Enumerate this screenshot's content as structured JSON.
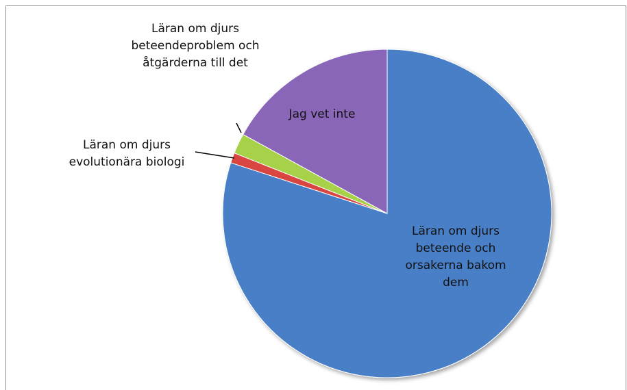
{
  "chart_data": {
    "type": "pie",
    "categories": [
      "Läran om djurs beteende och orsakerna bakom dem",
      "Läran om djurs evolutionära biologi",
      "Läran om djurs beteendeprob­lem och åtgärderna till det",
      "Jag vet inte"
    ],
    "values": [
      80,
      1,
      2,
      17
    ],
    "colors": [
      "#4a7fc6",
      "#d9453f",
      "#a6d14a",
      "#8a66b8"
    ]
  }
}
